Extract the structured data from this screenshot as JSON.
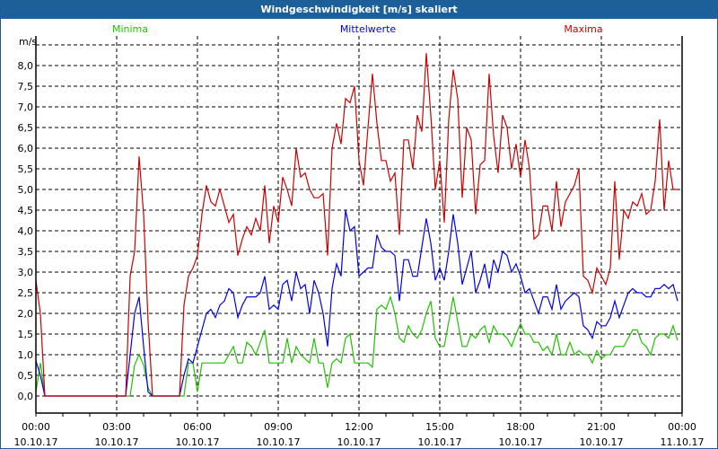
{
  "window": {
    "title": "Windgeschwindigkeit [m/s] skaliert"
  },
  "chart_data": {
    "type": "line",
    "title": "Windgeschwindigkeit [m/s] skaliert",
    "ylabel": "m/s",
    "xlabel": "",
    "ylim": [
      0,
      8.5
    ],
    "yticks": [
      "0,0",
      "0,5",
      "1,0",
      "1,5",
      "2,0",
      "2,5",
      "3,0",
      "3,5",
      "4,0",
      "4,5",
      "5,0",
      "5,5",
      "6,0",
      "6,5",
      "7,0",
      "7,5",
      "8,0"
    ],
    "xlim_hours": [
      0,
      24
    ],
    "xticks": [
      {
        "time": "00:00",
        "date": "10.10.17",
        "hour": 0
      },
      {
        "time": "03:00",
        "date": "10.10.17",
        "hour": 3
      },
      {
        "time": "06:00",
        "date": "10.10.17",
        "hour": 6
      },
      {
        "time": "09:00",
        "date": "10.10.17",
        "hour": 9
      },
      {
        "time": "12:00",
        "date": "10.10.17",
        "hour": 12
      },
      {
        "time": "15:00",
        "date": "10.10.17",
        "hour": 15
      },
      {
        "time": "18:00",
        "date": "10.10.17",
        "hour": 18
      },
      {
        "time": "21:00",
        "date": "10.10.17",
        "hour": 21
      },
      {
        "time": "00:00",
        "date": "11.10.17",
        "hour": 24
      }
    ],
    "grid": true,
    "legend_position": "top",
    "interval_minutes": 10,
    "series": [
      {
        "name": "Minima",
        "color": "#22c000",
        "values": [
          0.1,
          0.8,
          0,
          0,
          0,
          0,
          0,
          0,
          0,
          0,
          0,
          0,
          0,
          0,
          0,
          0,
          0,
          0,
          0,
          0,
          0,
          0,
          0.75,
          1.0,
          0.75,
          0.2,
          0,
          0,
          0,
          0,
          0,
          0,
          0,
          0,
          0.8,
          0.8,
          0.1,
          0.8,
          0.8,
          0.8,
          0.8,
          0.8,
          0.8,
          1.0,
          1.2,
          0.8,
          0.8,
          1.3,
          1.2,
          1.0,
          1.3,
          1.6,
          0.8,
          0.8,
          0.8,
          0.8,
          1.4,
          0.8,
          1.2,
          1.0,
          0.9,
          0.8,
          1.4,
          0.8,
          0.8,
          0.2,
          0.8,
          0.9,
          0.8,
          1.4,
          1.5,
          0.8,
          0.8,
          0.8,
          0.8,
          0.7,
          2.1,
          2.2,
          2.1,
          2.4,
          2.0,
          1.4,
          1.3,
          1.7,
          1.5,
          1.4,
          1.6,
          2.0,
          2.3,
          1.4,
          1.2,
          1.2,
          1.8,
          2.4,
          1.8,
          1.2,
          1.2,
          1.5,
          1.4,
          1.6,
          1.7,
          1.3,
          1.7,
          1.5,
          1.5,
          1.4,
          1.2,
          1.5,
          1.75,
          1.5,
          1.5,
          1.3,
          1.3,
          1.1,
          1.2,
          1.0,
          1.5,
          1.0,
          1.0,
          1.3,
          1.0,
          1.1,
          1.0,
          1.0,
          0.8,
          1.1,
          0.9,
          1.0,
          1.0,
          1.2,
          1.2,
          1.2,
          1.4,
          1.6,
          1.6,
          1.3,
          1.2,
          1.0,
          1.4,
          1.5,
          1.5,
          1.4,
          1.7,
          1.35
        ]
      },
      {
        "name": "Mittelwerte",
        "color": "#0000ee",
        "values": [
          0.85,
          0.5,
          0,
          0,
          0,
          0,
          0,
          0,
          0,
          0,
          0,
          0,
          0,
          0,
          0,
          0,
          0,
          0,
          0,
          0,
          0,
          1.0,
          2.0,
          2.4,
          1.2,
          0.1,
          0,
          0,
          0,
          0,
          0,
          0,
          0,
          0.5,
          0.9,
          0.8,
          1.2,
          1.6,
          2.0,
          2.1,
          1.9,
          2.2,
          2.3,
          2.6,
          2.5,
          1.9,
          2.2,
          2.4,
          2.4,
          2.4,
          2.5,
          2.9,
          2.1,
          2.2,
          2.1,
          2.7,
          2.8,
          2.3,
          3.0,
          2.6,
          2.7,
          2.0,
          2.8,
          2.5,
          2.0,
          1.2,
          2.6,
          3.2,
          2.9,
          4.5,
          4.0,
          4.1,
          2.9,
          3.0,
          3.1,
          3.1,
          3.9,
          3.6,
          3.5,
          3.5,
          3.4,
          2.3,
          3.3,
          3.3,
          2.9,
          2.9,
          3.6,
          4.3,
          3.7,
          2.8,
          3.1,
          2.8,
          3.5,
          4.4,
          3.7,
          2.7,
          3.1,
          3.5,
          2.5,
          2.8,
          3.2,
          2.6,
          3.3,
          3.0,
          3.5,
          3.4,
          3.0,
          3.2,
          2.9,
          2.5,
          2.6,
          2.3,
          2.0,
          2.4,
          2.4,
          2.1,
          2.7,
          2.1,
          2.3,
          2.4,
          2.5,
          2.4,
          1.7,
          1.6,
          1.4,
          1.8,
          1.7,
          1.7,
          1.9,
          2.3,
          1.9,
          2.2,
          2.5,
          2.6,
          2.5,
          2.5,
          2.4,
          2.4,
          2.6,
          2.6,
          2.7,
          2.6,
          2.7,
          2.3
        ]
      },
      {
        "name": "Maxima",
        "color": "#cc0000",
        "values": [
          2.8,
          2.0,
          0,
          0,
          0,
          0,
          0,
          0,
          0,
          0,
          0,
          0,
          0,
          0,
          0,
          0,
          0,
          0,
          0,
          0,
          0,
          2.9,
          3.5,
          5.8,
          4.4,
          1.8,
          0,
          0,
          0,
          0,
          0,
          0,
          0,
          2.2,
          2.9,
          3.1,
          3.4,
          4.4,
          5.1,
          4.7,
          4.6,
          5.0,
          4.6,
          4.2,
          4.4,
          3.4,
          3.8,
          4.1,
          3.9,
          4.3,
          4.0,
          5.1,
          3.7,
          4.6,
          4.2,
          5.3,
          5.0,
          4.6,
          6.0,
          5.3,
          5.4,
          5.0,
          4.8,
          4.8,
          4.9,
          3.4,
          6.0,
          6.6,
          6.1,
          7.2,
          7.1,
          7.5,
          5.7,
          5.1,
          6.5,
          7.8,
          6.6,
          5.7,
          5.7,
          5.2,
          5.4,
          3.9,
          6.2,
          6.2,
          5.5,
          6.8,
          6.4,
          8.3,
          6.8,
          5.0,
          5.7,
          4.2,
          6.7,
          7.9,
          7.2,
          4.8,
          6.5,
          6.2,
          4.4,
          5.6,
          5.7,
          7.8,
          6.3,
          5.4,
          6.8,
          6.5,
          5.5,
          6.1,
          5.3,
          6.2,
          5.5,
          3.8,
          3.9,
          4.6,
          4.6,
          4.0,
          5.2,
          4.1,
          4.7,
          4.9,
          5.1,
          5.5,
          2.9,
          2.8,
          2.5,
          3.1,
          2.9,
          2.7,
          3.1,
          5.2,
          3.3,
          4.5,
          4.3,
          4.7,
          4.6,
          4.9,
          4.4,
          4.5,
          5.2,
          6.7,
          4.5,
          5.7,
          5.0,
          5.0
        ]
      }
    ]
  }
}
